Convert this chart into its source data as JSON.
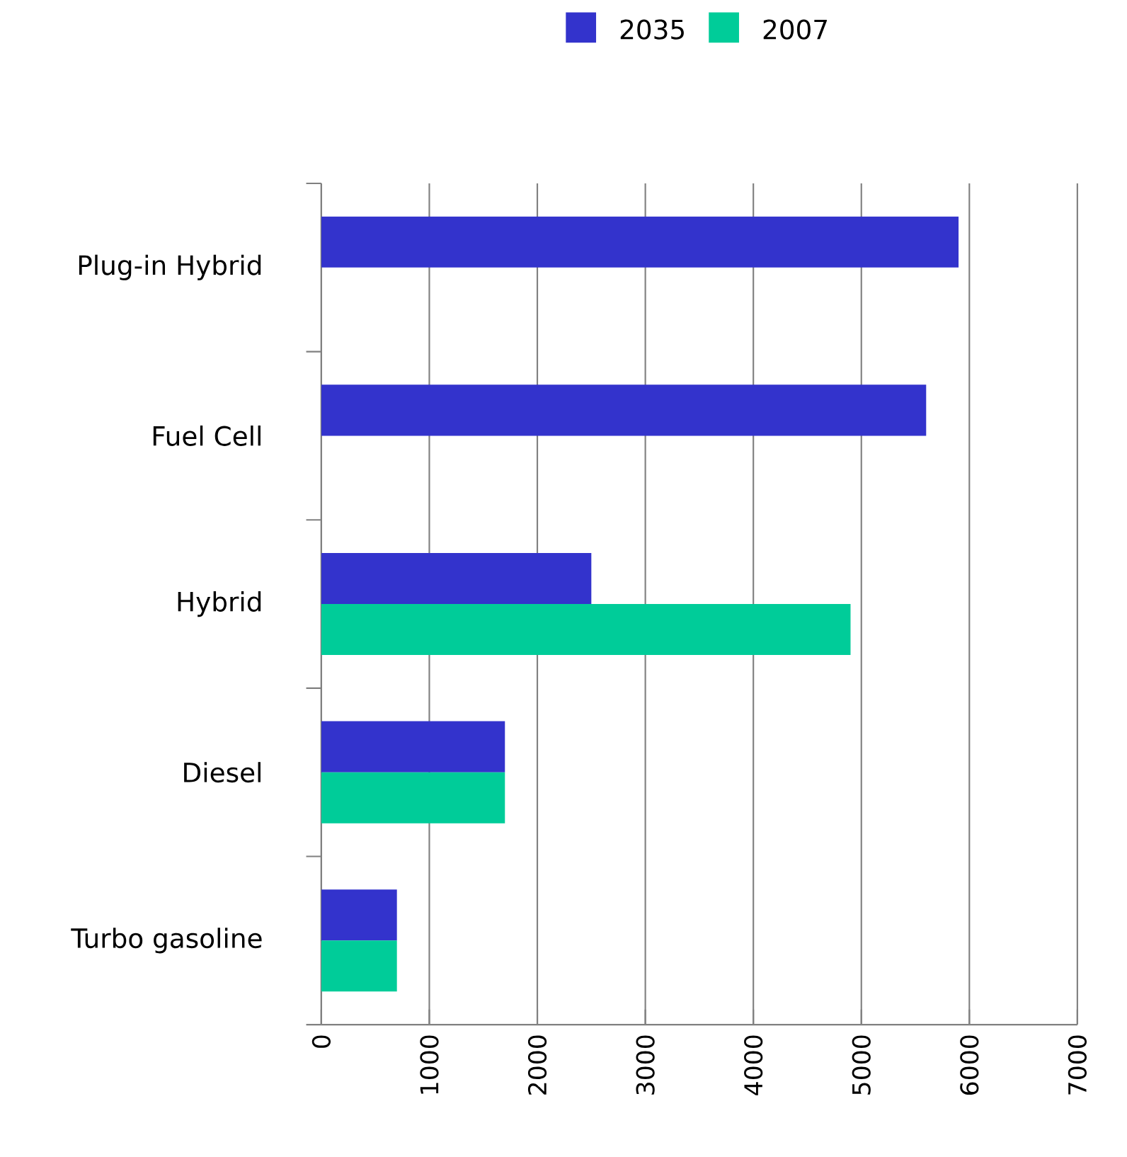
{
  "chart_data": {
    "type": "bar",
    "orientation": "horizontal",
    "categories": [
      "Plug-in Hybrid",
      "Fuel Cell",
      "Hybrid",
      "Diesel",
      "Turbo gasoline"
    ],
    "series": [
      {
        "name": "2035",
        "color": "#3333cc",
        "values": [
          5900,
          5600,
          2500,
          1700,
          700
        ]
      },
      {
        "name": "2007",
        "color": "#00cc99",
        "values": [
          null,
          null,
          4900,
          1700,
          700
        ]
      }
    ],
    "xlim": [
      0,
      7000
    ],
    "xticks": [
      0,
      1000,
      2000,
      3000,
      4000,
      5000,
      6000,
      7000
    ],
    "grid": "x",
    "legend": "top"
  }
}
